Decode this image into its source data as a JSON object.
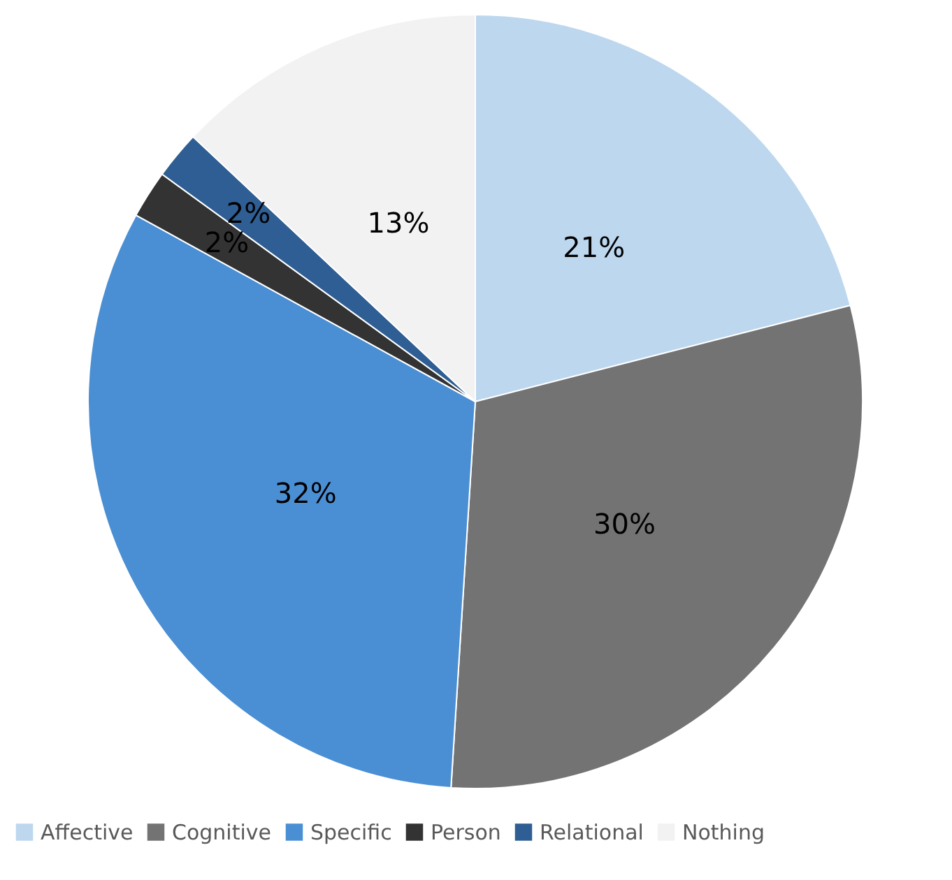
{
  "chart_data": {
    "type": "pie",
    "categories": [
      "Affective",
      "Cognitive",
      "Specific",
      "Person",
      "Relational",
      "Nothing"
    ],
    "values": [
      21,
      30,
      32,
      2,
      2,
      13
    ],
    "colors": [
      "#bdd7ee",
      "#737373",
      "#4a8fd4",
      "#333333",
      "#2e5e93",
      "#f2f2f2"
    ],
    "value_labels": [
      "21%",
      "30%",
      "32%",
      "2%",
      "2%",
      "13%"
    ],
    "legend": "bottom"
  }
}
